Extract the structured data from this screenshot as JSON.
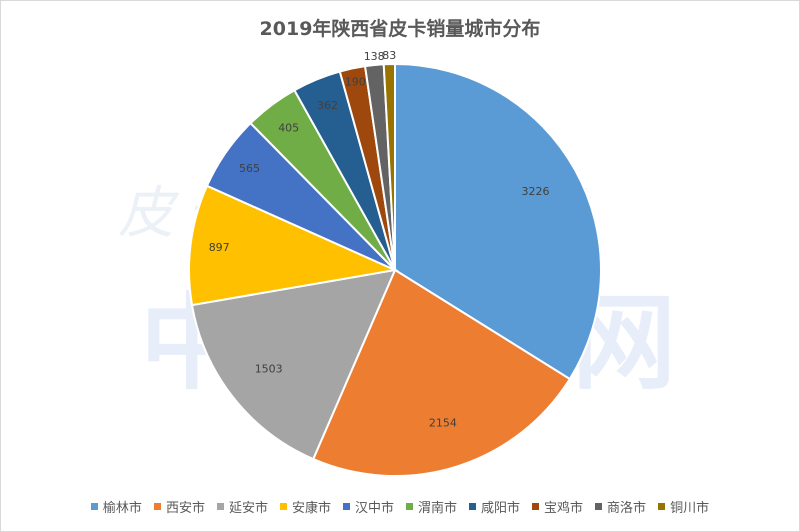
{
  "watermark": {
    "small_text": "皮卡评论领导者",
    "big_text": "中国皮卡网"
  },
  "chart_data": {
    "type": "pie",
    "title": "2019年陕西省皮卡销量城市分布",
    "legend_position": "bottom",
    "start_angle_deg": 0,
    "direction": "clockwise",
    "categories": [
      "榆林市",
      "西安市",
      "延安市",
      "安康市",
      "汉中市",
      "渭南市",
      "咸阳市",
      "宝鸡市",
      "商洛市",
      "铜川市"
    ],
    "values": [
      3226,
      2154,
      1503,
      897,
      565,
      405,
      362,
      190,
      138,
      83
    ],
    "colors": [
      "#5B9BD5",
      "#ED7D31",
      "#A5A5A5",
      "#FFC000",
      "#4472C4",
      "#70AD47",
      "#255E91",
      "#9E480E",
      "#636363",
      "#997300"
    ]
  }
}
